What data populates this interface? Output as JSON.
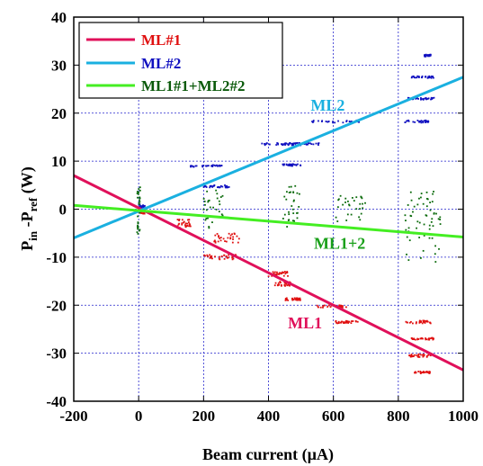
{
  "chart_data": {
    "type": "scatter",
    "title": "",
    "xlabel": "Beam current (µA)",
    "ylabel": {
      "main": "P",
      "sub1": "in",
      "mid": " -P",
      "sub2": "ref",
      "unit": " (W)"
    },
    "xlim": [
      -200,
      1000
    ],
    "ylim": [
      -40,
      40
    ],
    "xticks": [
      -200,
      0,
      200,
      400,
      600,
      800,
      1000
    ],
    "yticks": [
      -40,
      -30,
      -20,
      -10,
      0,
      10,
      20,
      30,
      40
    ],
    "grid": true,
    "legend_position": "top-left",
    "legend": [
      {
        "label": "ML#1",
        "color": "#e0105a",
        "text_color": "#e01010"
      },
      {
        "label": "ML#2",
        "color": "#1ab0e0",
        "text_color": "#1010c0"
      },
      {
        "label": "ML1#1+ML2#2",
        "color": "#44ee22",
        "text_color": "#0a5a0a"
      }
    ],
    "fit_lines": [
      {
        "name": "ML#1",
        "color": "#e0105a",
        "x": [
          -200,
          1000
        ],
        "y": [
          7,
          -33.5
        ]
      },
      {
        "name": "ML#2",
        "color": "#1ab0e0",
        "x": [
          -200,
          1000
        ],
        "y": [
          -6,
          27.5
        ]
      },
      {
        "name": "ML1#1+ML2#2",
        "color": "#44ee22",
        "x": [
          -200,
          1000
        ],
        "y": [
          0.8,
          -5.8
        ]
      }
    ],
    "scatter_series": [
      {
        "name": "ML#1",
        "color": "#e01010",
        "clusters": [
          {
            "x": [
              0,
              20
            ],
            "y": [
              -1,
              0
            ]
          },
          {
            "x": [
              120,
              160
            ],
            "y": [
              -4,
              -2
            ]
          },
          {
            "x": [
              200,
              300
            ],
            "y": [
              -10.5,
              -9.5
            ]
          },
          {
            "x": [
              230,
              310
            ],
            "y": [
              -7,
              -5
            ]
          },
          {
            "x": [
              400,
              460
            ],
            "y": [
              -14,
              -13
            ]
          },
          {
            "x": [
              420,
              470
            ],
            "y": [
              -16,
              -15
            ]
          },
          {
            "x": [
              450,
              500
            ],
            "y": [
              -19,
              -18.5
            ]
          },
          {
            "x": [
              550,
              640
            ],
            "y": [
              -20.5,
              -20
            ]
          },
          {
            "x": [
              600,
              680
            ],
            "y": [
              -23.8,
              -23.2
            ]
          },
          {
            "x": [
              820,
              900
            ],
            "y": [
              -23.8,
              -23.2
            ]
          },
          {
            "x": [
              840,
              910
            ],
            "y": [
              -27.2,
              -26.8
            ]
          },
          {
            "x": [
              830,
              900
            ],
            "y": [
              -30.8,
              -30.2
            ]
          },
          {
            "x": [
              850,
              900
            ],
            "y": [
              -34.2,
              -33.8
            ]
          }
        ]
      },
      {
        "name": "ML#2",
        "color": "#1010c0",
        "clusters": [
          {
            "x": [
              0,
              20
            ],
            "y": [
              0,
              1
            ]
          },
          {
            "x": [
              160,
              260
            ],
            "y": [
              8.8,
              9.2
            ]
          },
          {
            "x": [
              200,
              280
            ],
            "y": [
              4.5,
              5
            ]
          },
          {
            "x": [
              380,
              490
            ],
            "y": [
              13.3,
              13.8
            ]
          },
          {
            "x": [
              440,
              560
            ],
            "y": [
              13.3,
              13.8
            ]
          },
          {
            "x": [
              530,
              680
            ],
            "y": [
              18,
              18.5
            ]
          },
          {
            "x": [
              440,
              500
            ],
            "y": [
              9,
              9.4
            ]
          },
          {
            "x": [
              820,
              900
            ],
            "y": [
              18,
              18.5
            ]
          },
          {
            "x": [
              830,
              910
            ],
            "y": [
              22.8,
              23.2
            ]
          },
          {
            "x": [
              840,
              910
            ],
            "y": [
              27.3,
              27.7
            ]
          },
          {
            "x": [
              880,
              900
            ],
            "y": [
              31.8,
              32.2
            ]
          }
        ]
      },
      {
        "name": "ML1#1+ML2#2",
        "color": "#0a6a0a",
        "clusters": [
          {
            "x": [
              -5,
              5
            ],
            "y": [
              -6,
              5
            ]
          },
          {
            "x": [
              200,
              260
            ],
            "y": [
              -4,
              4
            ]
          },
          {
            "x": [
              440,
              500
            ],
            "y": [
              -4,
              5
            ]
          },
          {
            "x": [
              600,
              700
            ],
            "y": [
              -3,
              3
            ]
          },
          {
            "x": [
              820,
              930
            ],
            "y": [
              -11,
              0
            ]
          },
          {
            "x": [
              830,
              920
            ],
            "y": [
              -4,
              4
            ]
          }
        ]
      }
    ],
    "annotations": [
      {
        "text": "ML2",
        "x": 530,
        "y": 20.5,
        "color": "#1ab0e0"
      },
      {
        "text": "ML1+2",
        "x": 540,
        "y": -8.2,
        "color": "#1aa01a"
      },
      {
        "text": "ML1",
        "x": 460,
        "y": -24.8,
        "color": "#e0105a"
      }
    ]
  }
}
